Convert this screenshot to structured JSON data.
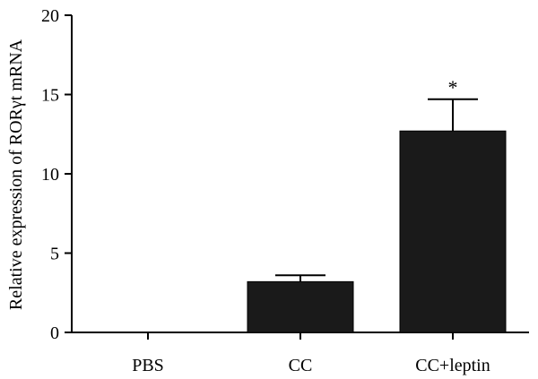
{
  "chart_data": {
    "type": "bar",
    "categories": [
      "PBS",
      "CC",
      "CC+leptin"
    ],
    "values": [
      0,
      3.2,
      12.7
    ],
    "errors": [
      0,
      0.4,
      2.0
    ],
    "annotations": [
      "",
      "",
      "*"
    ],
    "ylabel": "Relative expression of RORγt mRNA",
    "ylim": [
      0,
      20
    ],
    "yticks": [
      0,
      5,
      10,
      15,
      20
    ],
    "grid": false,
    "colors": {
      "bar": "#1a1a1a",
      "axis": "#000000"
    }
  }
}
